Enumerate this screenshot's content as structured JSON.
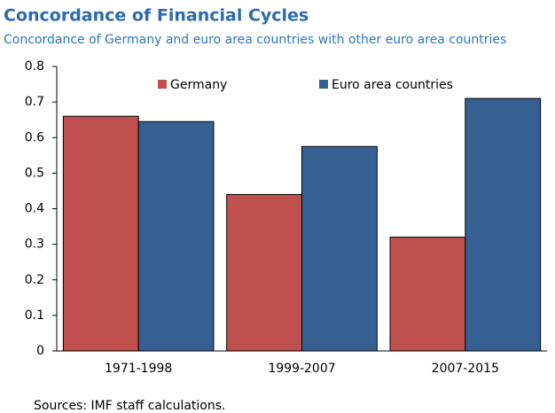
{
  "chart_data": {
    "type": "bar",
    "title": "Concordance of Financial Cycles",
    "subtitle": "Concordance of Germany and euro area countries with other euro area countries",
    "categories": [
      "1971-1998",
      "1999-2007",
      "2007-2015"
    ],
    "series": [
      {
        "name": "Germany",
        "color": "#c0504d",
        "values": [
          0.66,
          0.44,
          0.32
        ]
      },
      {
        "name": "Euro area countries",
        "color": "#366092",
        "values": [
          0.645,
          0.575,
          0.71
        ]
      }
    ],
    "ylim": [
      0,
      0.8
    ],
    "yticks": [
      0,
      0.1,
      0.2,
      0.3,
      0.4,
      0.5,
      0.6,
      0.7,
      0.8
    ],
    "legend": "top",
    "source": "Sources: IMF staff calculations."
  }
}
